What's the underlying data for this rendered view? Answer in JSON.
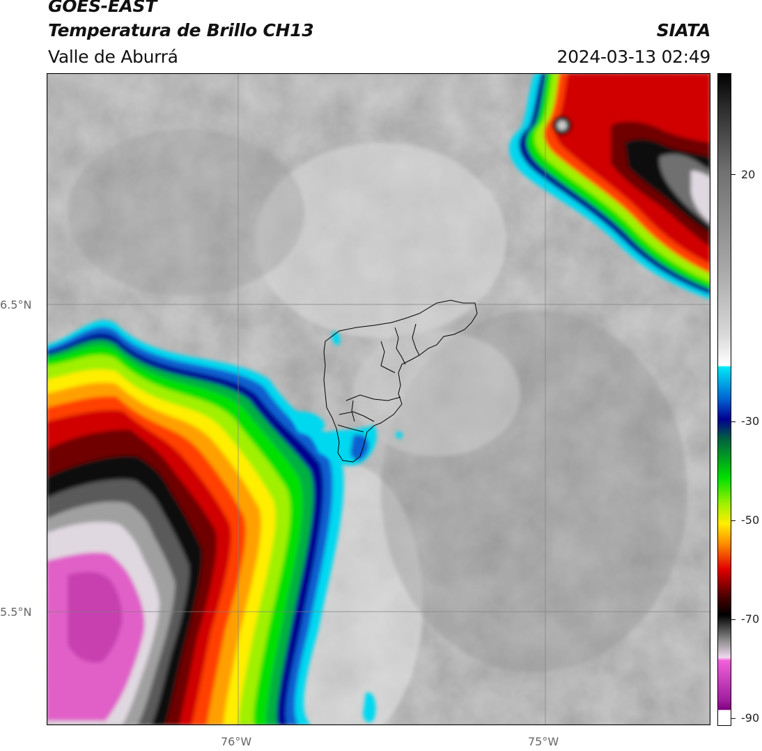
{
  "header": {
    "satellite": "GOES-EAST",
    "product": "Temperatura de Brillo CH13",
    "region": "Valle de Aburrá",
    "org": "SIATA",
    "datetime": "2024-03-13 02:49"
  },
  "map": {
    "lon_ticks": [
      {
        "value": -76,
        "label": "76°W"
      },
      {
        "value": -75,
        "label": "75°W"
      }
    ],
    "lat_ticks": [
      {
        "value": 6.5,
        "label": "6.5°N"
      },
      {
        "value": 5.5,
        "label": "5.5°N"
      }
    ],
    "extent": {
      "lon_min": -76.62,
      "lon_max": -74.47,
      "lat_min": 5.13,
      "lat_max": 7.25
    }
  },
  "colorbar": {
    "tick_labels": [
      {
        "value": 20,
        "label": "20"
      },
      {
        "value": -30,
        "label": "-30"
      },
      {
        "value": -50,
        "label": "-50"
      },
      {
        "value": -70,
        "label": "-70"
      },
      {
        "value": -90,
        "label": "-90"
      }
    ],
    "range": [
      -91.5,
      40.5
    ],
    "colors": {
      "magenta": "#e050d0",
      "white": "#ffffff",
      "black": "#000000",
      "red": "#e00000",
      "yellow": "#ffee00",
      "green": "#00c800",
      "blue": "#0000a0",
      "cyan": "#00d8f0"
    }
  }
}
